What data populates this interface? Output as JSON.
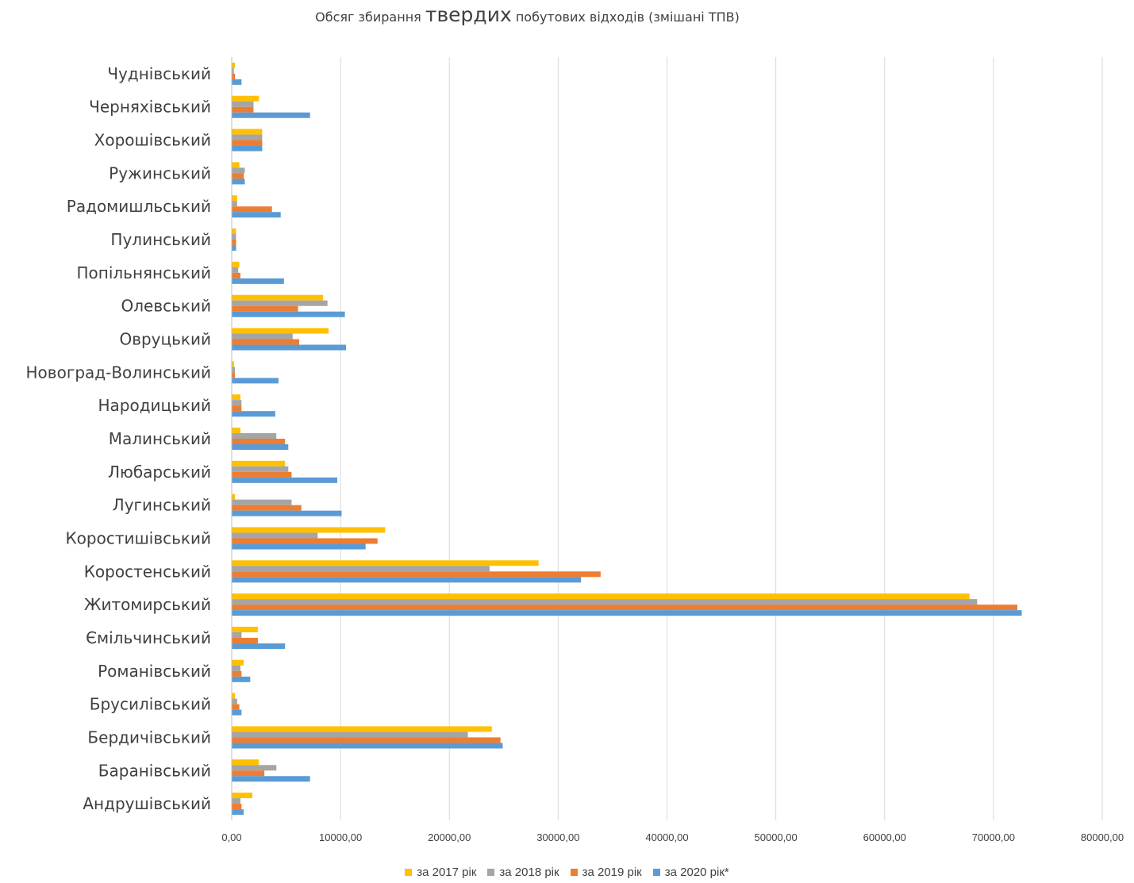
{
  "title": {
    "prefix": "Обсяг збирання ",
    "emphasis": "твердих",
    "suffix": " побутових відходів (змішані ТПВ)"
  },
  "chart_data": {
    "type": "bar",
    "orientation": "horizontal",
    "title": "Обсяг збирання твердих побутових відходів (змішані ТПВ)",
    "categories": [
      "Андрушівський",
      "Баранівський",
      "Бердичівський",
      "Брусилівський",
      "Романівський",
      "Ємільчинський",
      "Житомирський",
      "Коростенський",
      "Коростишівський",
      "Лугинський",
      "Любарський",
      "Малинський",
      "Народицький",
      "Новоград-Волинський",
      "Овруцький",
      "Олевський",
      "Попільнянський",
      "Пулинський",
      "Радомишльський",
      "Ружинський",
      "Хорошівський",
      "Черняхівський",
      "Чуднівський"
    ],
    "series": [
      {
        "name": "за 2017 рік",
        "color": "#FFC000",
        "values": [
          1900,
          2500,
          23900,
          300,
          1100,
          2400,
          67800,
          28200,
          14100,
          300,
          4900,
          800,
          800,
          200,
          8900,
          8400,
          700,
          400,
          500,
          700,
          2800,
          2500,
          300
        ]
      },
      {
        "name": "за 2018 рік",
        "color": "#A5A5A5",
        "values": [
          800,
          4100,
          21700,
          500,
          800,
          900,
          68500,
          23700,
          7900,
          5500,
          5200,
          4100,
          900,
          300,
          5600,
          8800,
          600,
          400,
          500,
          1200,
          2800,
          2000,
          200
        ]
      },
      {
        "name": "за 2019 рік",
        "color": "#ED7D31",
        "values": [
          900,
          3000,
          24700,
          700,
          900,
          2400,
          72200,
          33900,
          13400,
          6400,
          5500,
          4900,
          900,
          300,
          6200,
          6100,
          800,
          400,
          3700,
          1100,
          2800,
          2000,
          300
        ]
      },
      {
        "name": "за 2020 рік*",
        "color": "#5B9BD5",
        "values": [
          1100,
          7200,
          24900,
          900,
          1700,
          4900,
          72600,
          32100,
          12300,
          10100,
          9700,
          5200,
          4000,
          4300,
          10500,
          10400,
          4800,
          400,
          4500,
          1200,
          2800,
          7200,
          900
        ]
      }
    ],
    "xlim": [
      0,
      80000
    ],
    "ticks": [
      "0,00",
      "10000,00",
      "20000,00",
      "30000,00",
      "40000,00",
      "50000,00",
      "60000,00",
      "70000,00",
      "80000,00"
    ],
    "grid": true,
    "legend_position": "bottom"
  }
}
